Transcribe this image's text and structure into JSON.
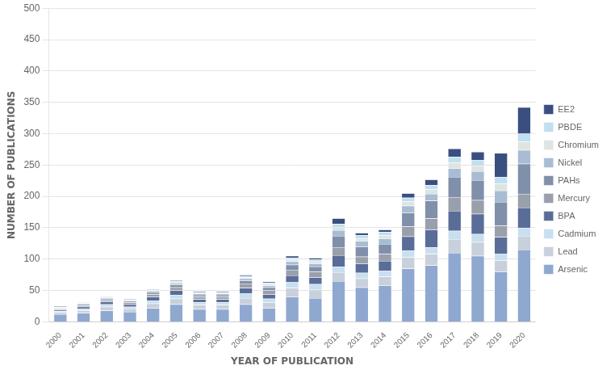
{
  "chart_data": {
    "type": "bar",
    "stacked": true,
    "xlabel": "YEAR OF PUBLICATION",
    "ylabel": "NUMBER OF PUBLICATIONS",
    "categories": [
      "2000",
      "2001",
      "2002",
      "2003",
      "2004",
      "2005",
      "2006",
      "2007",
      "2008",
      "2009",
      "2010",
      "2011",
      "2012",
      "2013",
      "2014",
      "2015",
      "2016",
      "2017",
      "2018",
      "2019",
      "2020"
    ],
    "series": [
      {
        "name": "Arsenic",
        "color": "#8fa8d0",
        "values": [
          12,
          14,
          18,
          16,
          22,
          28,
          20,
          20,
          28,
          22,
          40,
          38,
          65,
          55,
          58,
          85,
          90,
          110,
          105,
          80,
          115
        ]
      },
      {
        "name": "Lead",
        "color": "#c8d0dc",
        "values": [
          3,
          4,
          6,
          5,
          7,
          9,
          7,
          7,
          10,
          9,
          14,
          13,
          14,
          14,
          14,
          18,
          18,
          22,
          22,
          18,
          22
        ]
      },
      {
        "name": "Cadmium",
        "color": "#c8dff0",
        "values": [
          2,
          3,
          4,
          3,
          5,
          6,
          4,
          4,
          7,
          6,
          9,
          9,
          9,
          9,
          9,
          11,
          11,
          13,
          13,
          10,
          13
        ]
      },
      {
        "name": "BPA",
        "color": "#5a6d98",
        "values": [
          2,
          3,
          4,
          4,
          6,
          7,
          5,
          5,
          9,
          7,
          11,
          11,
          18,
          15,
          16,
          22,
          28,
          32,
          32,
          27,
          32
        ]
      },
      {
        "name": "Mercury",
        "color": "#9a9fac",
        "values": [
          1,
          2,
          3,
          3,
          4,
          5,
          4,
          4,
          7,
          6,
          9,
          9,
          13,
          11,
          11,
          16,
          18,
          22,
          22,
          18,
          22
        ]
      },
      {
        "name": "PAHs",
        "color": "#8090aa",
        "values": [
          1,
          2,
          2,
          2,
          3,
          4,
          3,
          3,
          5,
          5,
          8,
          8,
          18,
          16,
          16,
          22,
          28,
          32,
          32,
          38,
          48
        ]
      },
      {
        "name": "Nickel",
        "color": "#a8bcd4",
        "values": [
          1,
          1,
          1,
          1,
          2,
          3,
          2,
          2,
          3,
          3,
          5,
          5,
          9,
          9,
          9,
          11,
          11,
          14,
          14,
          18,
          22
        ]
      },
      {
        "name": "Chromium",
        "color": "#e0e4e0",
        "values": [
          1,
          1,
          1,
          1,
          1,
          2,
          1,
          1,
          2,
          2,
          3,
          3,
          5,
          4,
          5,
          7,
          7,
          9,
          9,
          11,
          13
        ]
      },
      {
        "name": "PBDE",
        "color": "#c0dff0",
        "values": [
          1,
          1,
          1,
          1,
          1,
          1,
          1,
          1,
          2,
          2,
          3,
          3,
          5,
          5,
          5,
          6,
          7,
          9,
          9,
          11,
          13
        ]
      },
      {
        "name": "EE2",
        "color": "#3a4f80",
        "values": [
          1,
          1,
          1,
          1,
          1,
          1,
          1,
          1,
          2,
          2,
          3,
          3,
          9,
          4,
          4,
          7,
          9,
          13,
          13,
          38,
          42
        ]
      }
    ],
    "ylim": [
      0,
      500
    ],
    "yticks": [
      0,
      50,
      100,
      150,
      200,
      250,
      300,
      350,
      400,
      450,
      500
    ],
    "grid": true,
    "legend": "right"
  }
}
